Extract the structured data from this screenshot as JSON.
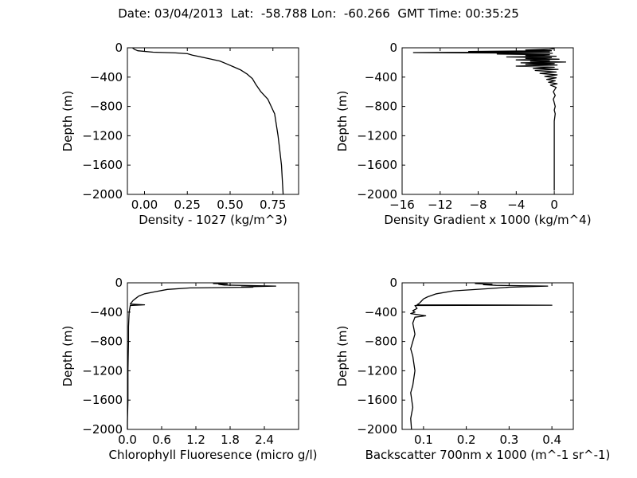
{
  "title": "Date: 03/04/2013  Lat:  -58.788 Lon:  -60.266  GMT Time: 00:35:25",
  "chart_data": [
    {
      "type": "line",
      "xlabel": "Density - 1027 (kg/m^3)",
      "ylabel": "Depth (m)",
      "xlim": [
        -0.1,
        0.9
      ],
      "ylim": [
        -2000,
        0
      ],
      "xticks": [
        0.0,
        0.25,
        0.5,
        0.75
      ],
      "xtick_labels": [
        "0.00",
        "0.25",
        "0.50",
        "0.75"
      ],
      "yticks": [
        0,
        -400,
        -800,
        -1200,
        -1600,
        -2000
      ],
      "ytick_labels": [
        "0",
        "−400",
        "−800",
        "−1200",
        "−1600",
        "−2000"
      ],
      "grid": false,
      "series": [
        {
          "x": [
            -0.07,
            -0.06,
            -0.04,
            0.05,
            0.18,
            0.25,
            0.28,
            0.32,
            0.36,
            0.4,
            0.44,
            0.48,
            0.52,
            0.56,
            0.6,
            0.63,
            0.65,
            0.68,
            0.72,
            0.74,
            0.76,
            0.78,
            0.79,
            0.8,
            0.81
          ],
          "y": [
            0,
            -20,
            -40,
            -60,
            -70,
            -80,
            -100,
            -120,
            -140,
            -160,
            -180,
            -220,
            -260,
            -300,
            -360,
            -420,
            -500,
            -600,
            -700,
            -800,
            -900,
            -1200,
            -1400,
            -1600,
            -2000
          ]
        }
      ]
    },
    {
      "type": "line",
      "xlabel": "Density Gradient x 1000 (kg/m^4)",
      "ylabel": "Depth (m)",
      "xlim": [
        -16,
        2
      ],
      "ylim": [
        -2000,
        0
      ],
      "xticks": [
        -16,
        -12,
        -8,
        -4,
        0
      ],
      "xtick_labels": [
        "−16",
        "−12",
        "−8",
        "−4",
        "0"
      ],
      "yticks": [
        0,
        -400,
        -800,
        -1200,
        -1600,
        -2000
      ],
      "ytick_labels": [
        "0",
        "−400",
        "−800",
        "−1200",
        "−1600",
        "−2000"
      ],
      "grid": false,
      "series": [
        {
          "x": [
            0,
            -0.5,
            -3,
            -0.3,
            -9,
            -0.5,
            -14.8,
            -0.2,
            -6,
            -0.5,
            -3,
            0.2,
            -5,
            -0.3,
            -3,
            0.5,
            -4,
            -0.5,
            -2.5,
            1.2,
            -3.5,
            0,
            -3,
            0.3,
            -4,
            0,
            -2.2,
            0.4,
            -2,
            0.2,
            -1.5,
            0.3,
            -1,
            0.2,
            -0.8,
            0.1,
            -0.6,
            0.3,
            -0.4,
            0.2,
            -0.1,
            0.1,
            -0.1,
            0,
            0.1,
            0,
            0.1,
            0,
            0,
            0,
            0,
            0,
            0
          ],
          "y": [
            -10,
            -20,
            -30,
            -40,
            -50,
            -55,
            -65,
            -75,
            -85,
            -95,
            -105,
            -115,
            -125,
            -135,
            -145,
            -155,
            -165,
            -175,
            -185,
            -195,
            -205,
            -215,
            -225,
            -235,
            -250,
            -265,
            -280,
            -295,
            -310,
            -330,
            -350,
            -370,
            -390,
            -410,
            -430,
            -450,
            -470,
            -490,
            -510,
            -540,
            -600,
            -650,
            -700,
            -750,
            -800,
            -850,
            -900,
            -1000,
            -1200,
            -1400,
            -1600,
            -1800,
            -1950
          ]
        }
      ]
    },
    {
      "type": "line",
      "xlabel": "Chlorophyll Fluoresence (micro g/l)",
      "ylabel": "Depth (m)",
      "xlim": [
        0,
        3.0
      ],
      "ylim": [
        -2000,
        0
      ],
      "xticks": [
        0.0,
        0.6,
        1.2,
        1.8,
        2.4
      ],
      "xtick_labels": [
        "0.0",
        "0.6",
        "1.2",
        "1.8",
        "2.4"
      ],
      "yticks": [
        0,
        -400,
        -800,
        -1200,
        -1600,
        -2000
      ],
      "ytick_labels": [
        "0",
        "−400",
        "−800",
        "−1200",
        "−1600",
        "−2000"
      ],
      "grid": false,
      "series": [
        {
          "x": [
            1.5,
            1.75,
            1.6,
            1.7,
            2.6,
            2.0,
            2.2,
            1.1,
            0.7,
            0.5,
            0.3,
            0.2,
            0.15,
            0.1,
            0.05,
            0.3,
            0.05,
            0.03,
            0.02,
            0.02,
            0.01,
            0.01,
            0.0,
            0.0
          ],
          "y": [
            -10,
            -15,
            -20,
            -30,
            -45,
            -55,
            -60,
            -70,
            -90,
            -120,
            -150,
            -180,
            -210,
            -240,
            -290,
            -300,
            -310,
            -400,
            -600,
            -800,
            -1200,
            -1600,
            -1900,
            -2000
          ]
        }
      ]
    },
    {
      "type": "line",
      "xlabel": "Backscatter 700nm x 1000 (m^-1 sr^-1)",
      "ylabel": "Depth (m)",
      "xlim": [
        0.05,
        0.45
      ],
      "ylim": [
        -2000,
        0
      ],
      "xticks": [
        0.1,
        0.2,
        0.3,
        0.4
      ],
      "xtick_labels": [
        "0.1",
        "0.2",
        "0.3",
        "0.4"
      ],
      "yticks": [
        0,
        -400,
        -800,
        -1200,
        -1600,
        -2000
      ],
      "ytick_labels": [
        "0",
        "−400",
        "−800",
        "−1200",
        "−1600",
        "−2000"
      ],
      "grid": false,
      "series": [
        {
          "x": [
            0.22,
            0.26,
            0.24,
            0.27,
            0.39,
            0.3,
            0.25,
            0.17,
            0.13,
            0.11,
            0.1,
            0.095,
            0.09,
            0.085,
            0.4,
            0.08,
            0.085,
            0.075,
            0.08,
            0.07,
            0.105,
            0.08,
            0.075,
            0.08,
            0.07,
            0.075,
            0.08,
            0.075,
            0.07,
            0.075,
            0.07,
            0.072
          ],
          "y": [
            -10,
            -20,
            -25,
            -35,
            -45,
            -60,
            -80,
            -110,
            -150,
            -190,
            -220,
            -250,
            -280,
            -300,
            -305,
            -310,
            -350,
            -380,
            -400,
            -420,
            -450,
            -470,
            -550,
            -700,
            -900,
            -1000,
            -1200,
            -1400,
            -1500,
            -1700,
            -1850,
            -2000
          ]
        }
      ]
    }
  ]
}
